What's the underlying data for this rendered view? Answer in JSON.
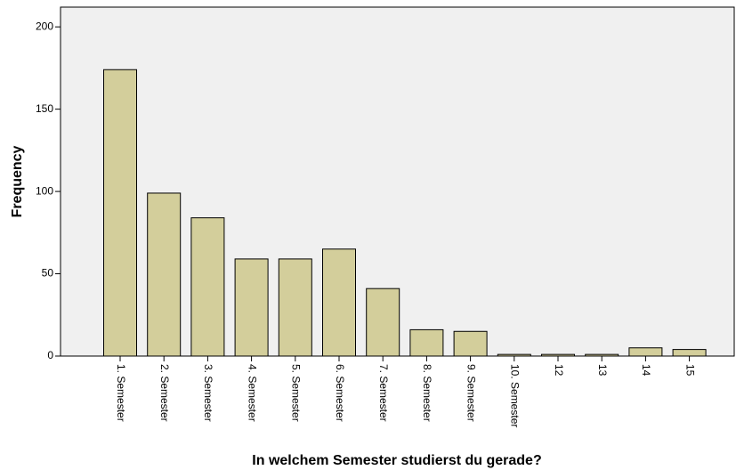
{
  "chart_data": {
    "type": "bar",
    "x_label": "In welchem Semester studierst du gerade?",
    "y_label": "Frequency",
    "categories": [
      "1. Semester",
      "2. Semester",
      "3. Semester",
      "4. Semester",
      "5. Semester",
      "6. Semester",
      "7. Semester",
      "8. Semester",
      "9. Semester",
      "10. Semester",
      "12",
      "13",
      "14",
      "15"
    ],
    "values": [
      174,
      99,
      84,
      59,
      59,
      65,
      41,
      16,
      15,
      1,
      1,
      1,
      5,
      4
    ],
    "color": "#d3ce9b",
    "ylim": [
      0,
      212
    ],
    "yticks": [
      0,
      50,
      100,
      150,
      200
    ]
  }
}
